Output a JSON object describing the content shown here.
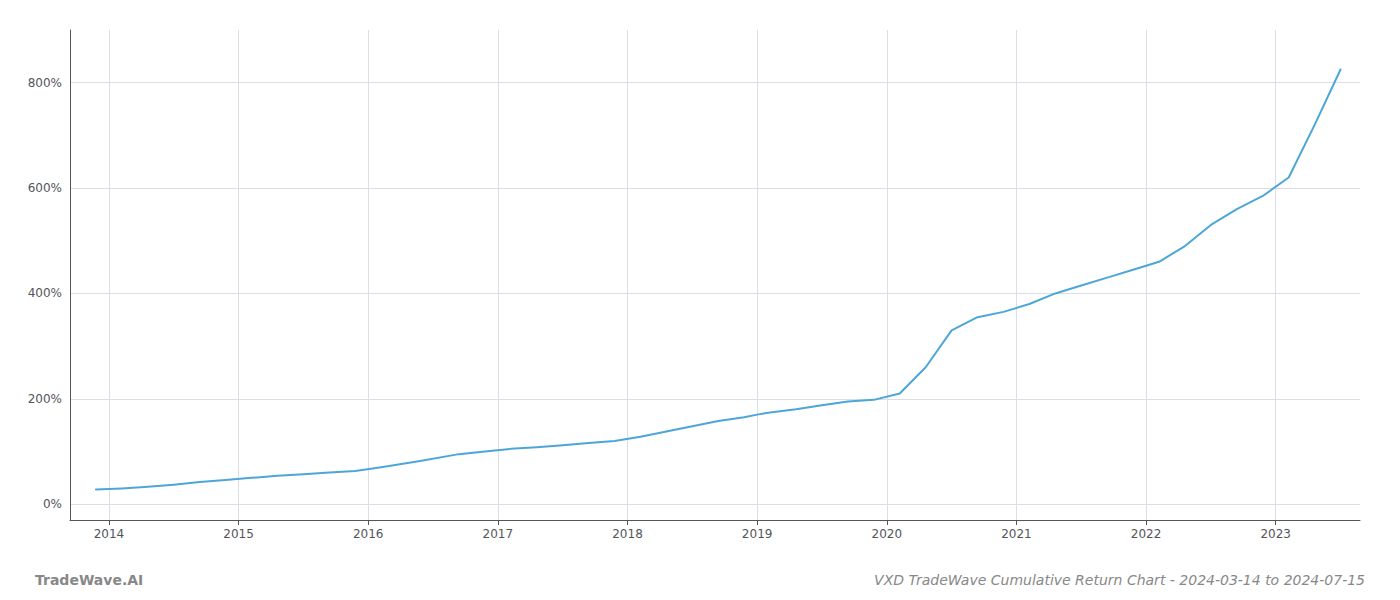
{
  "chart_data": {
    "type": "line",
    "title": "VXD TradeWave Cumulative Return Chart - 2024-03-14 to 2024-07-15",
    "annotations": [
      "TradeWave.AI"
    ],
    "x": [
      2013.9,
      2014.1,
      2014.3,
      2014.5,
      2014.7,
      2014.9,
      2015.1,
      2015.3,
      2015.5,
      2015.7,
      2015.9,
      2016.1,
      2016.4,
      2016.7,
      2016.9,
      2017.1,
      2017.3,
      2017.5,
      2017.7,
      2017.9,
      2018.1,
      2018.3,
      2018.5,
      2018.7,
      2018.9,
      2019.0,
      2019.1,
      2019.3,
      2019.5,
      2019.7,
      2019.9,
      2020.1,
      2020.3,
      2020.5,
      2020.7,
      2020.9,
      2021.1,
      2021.3,
      2021.5,
      2021.7,
      2021.9,
      2022.1,
      2022.3,
      2022.5,
      2022.7,
      2022.9,
      2023.1,
      2023.3,
      2023.5
    ],
    "values": [
      28,
      30,
      33,
      37,
      42,
      46,
      50,
      54,
      57,
      60,
      63,
      70,
      82,
      95,
      100,
      105,
      108,
      112,
      116,
      120,
      128,
      138,
      148,
      158,
      165,
      170,
      174,
      180,
      188,
      195,
      198,
      210,
      260,
      330,
      355,
      365,
      380,
      400,
      415,
      430,
      445,
      460,
      490,
      530,
      560,
      585,
      620,
      720,
      825
    ],
    "color": "#4da6d8",
    "xlim": [
      2013.7,
      2023.65
    ],
    "xticks": [
      2014,
      2015,
      2016,
      2017,
      2018,
      2019,
      2020,
      2021,
      2022,
      2023
    ],
    "ylim": [
      -30,
      900
    ],
    "yticks": [
      {
        "value": 0,
        "label": "0%"
      },
      {
        "value": 200,
        "label": "200%"
      },
      {
        "value": 400,
        "label": "400%"
      },
      {
        "value": 600,
        "label": "600%"
      },
      {
        "value": 800,
        "label": "800%"
      }
    ],
    "grid": true
  }
}
